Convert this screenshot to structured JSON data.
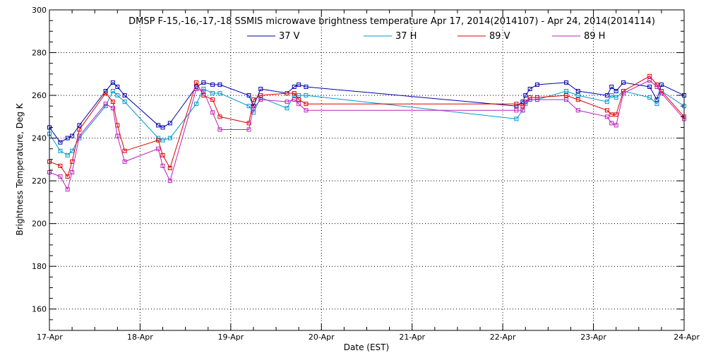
{
  "chart_data": {
    "type": "line",
    "title": "DMSP F-15,-16,-17,-18 SSMIS microwave brightness temperature Apr 17, 2014(2014107) - Apr 24, 2014(2014114)",
    "xlabel": "Date (EST)",
    "ylabel": "Brightness Temperature, Deg K",
    "ylim": [
      150,
      300
    ],
    "xlim": [
      0,
      7
    ],
    "yticks": [
      160,
      180,
      200,
      220,
      240,
      260,
      280,
      300
    ],
    "x_tick_labels": [
      "17-Apr",
      "18-Apr",
      "19-Apr",
      "20-Apr",
      "21-Apr",
      "22-Apr",
      "23-Apr",
      "24-Apr"
    ],
    "grid": true,
    "legend_position": "top-center",
    "series": [
      {
        "name": "37 V",
        "color": "#0000aa",
        "points": [
          [
            0.0,
            245
          ],
          [
            0.12,
            238
          ],
          [
            0.2,
            240
          ],
          [
            0.25,
            241
          ],
          [
            0.33,
            246
          ],
          [
            0.62,
            262
          ],
          [
            0.7,
            266
          ],
          [
            0.75,
            264
          ],
          [
            0.83,
            260
          ],
          [
            1.2,
            246
          ],
          [
            1.25,
            245
          ],
          [
            1.33,
            247
          ],
          [
            1.62,
            264
          ],
          [
            1.7,
            266
          ],
          [
            1.8,
            265
          ],
          [
            1.88,
            265
          ],
          [
            2.2,
            260
          ],
          [
            2.25,
            255
          ],
          [
            2.33,
            263
          ],
          [
            2.62,
            261
          ],
          [
            2.7,
            264
          ],
          [
            2.75,
            265
          ],
          [
            2.83,
            264
          ],
          [
            5.15,
            255
          ],
          [
            5.22,
            257
          ],
          [
            5.25,
            260
          ],
          [
            5.3,
            263
          ],
          [
            5.38,
            265
          ],
          [
            5.7,
            266
          ],
          [
            5.83,
            262
          ],
          [
            6.15,
            260
          ],
          [
            6.2,
            264
          ],
          [
            6.25,
            262
          ],
          [
            6.33,
            266
          ],
          [
            6.62,
            264
          ],
          [
            6.7,
            258
          ],
          [
            6.75,
            265
          ],
          [
            7.0,
            260
          ]
        ]
      },
      {
        "name": "37 H",
        "color": "#0099cc",
        "points": [
          [
            0.0,
            242
          ],
          [
            0.12,
            234
          ],
          [
            0.2,
            232
          ],
          [
            0.25,
            234
          ],
          [
            0.33,
            240
          ],
          [
            0.62,
            255
          ],
          [
            0.7,
            262
          ],
          [
            0.75,
            260
          ],
          [
            0.83,
            257
          ],
          [
            1.2,
            240
          ],
          [
            1.25,
            239
          ],
          [
            1.33,
            240
          ],
          [
            1.62,
            256
          ],
          [
            1.7,
            263
          ],
          [
            1.8,
            261
          ],
          [
            1.88,
            261
          ],
          [
            2.2,
            255
          ],
          [
            2.25,
            252
          ],
          [
            2.33,
            259
          ],
          [
            2.62,
            254
          ],
          [
            2.7,
            260
          ],
          [
            2.75,
            260
          ],
          [
            2.83,
            260
          ],
          [
            5.15,
            249
          ],
          [
            5.22,
            253
          ],
          [
            5.25,
            256
          ],
          [
            5.3,
            258
          ],
          [
            5.38,
            258
          ],
          [
            5.7,
            262
          ],
          [
            5.83,
            260
          ],
          [
            6.15,
            257
          ],
          [
            6.2,
            260
          ],
          [
            6.25,
            259
          ],
          [
            6.33,
            262
          ],
          [
            6.62,
            259
          ],
          [
            6.7,
            256
          ],
          [
            6.75,
            262
          ],
          [
            7.0,
            255
          ]
        ]
      },
      {
        "name": "89 V",
        "color": "#dd0000",
        "points": [
          [
            0.0,
            229
          ],
          [
            0.12,
            227
          ],
          [
            0.2,
            222
          ],
          [
            0.25,
            229
          ],
          [
            0.33,
            244
          ],
          [
            0.62,
            261
          ],
          [
            0.7,
            257
          ],
          [
            0.75,
            246
          ],
          [
            0.83,
            234
          ],
          [
            1.2,
            239
          ],
          [
            1.25,
            232
          ],
          [
            1.33,
            226
          ],
          [
            1.62,
            266
          ],
          [
            1.7,
            260
          ],
          [
            1.8,
            258
          ],
          [
            1.88,
            250
          ],
          [
            2.2,
            247
          ],
          [
            2.25,
            258
          ],
          [
            2.33,
            260
          ],
          [
            2.62,
            261
          ],
          [
            2.7,
            261
          ],
          [
            2.75,
            258
          ],
          [
            2.83,
            256
          ],
          [
            5.15,
            256
          ],
          [
            5.22,
            255
          ],
          [
            5.25,
            257
          ],
          [
            5.3,
            259
          ],
          [
            5.38,
            259
          ],
          [
            5.7,
            260
          ],
          [
            5.83,
            258
          ],
          [
            6.15,
            253
          ],
          [
            6.2,
            251
          ],
          [
            6.25,
            251
          ],
          [
            6.33,
            262
          ],
          [
            6.62,
            269
          ],
          [
            6.7,
            265
          ],
          [
            6.75,
            262
          ],
          [
            7.0,
            250
          ]
        ]
      },
      {
        "name": "89 H",
        "color": "#bb22bb",
        "points": [
          [
            0.0,
            224
          ],
          [
            0.12,
            222
          ],
          [
            0.2,
            216
          ],
          [
            0.25,
            224
          ],
          [
            0.33,
            241
          ],
          [
            0.62,
            256
          ],
          [
            0.7,
            254
          ],
          [
            0.75,
            241
          ],
          [
            0.83,
            229
          ],
          [
            1.2,
            235
          ],
          [
            1.25,
            227
          ],
          [
            1.33,
            220
          ],
          [
            1.62,
            263
          ],
          [
            1.7,
            262
          ],
          [
            1.8,
            252
          ],
          [
            1.88,
            244
          ],
          [
            2.2,
            244
          ],
          [
            2.25,
            254
          ],
          [
            2.33,
            258
          ],
          [
            2.62,
            257
          ],
          [
            2.7,
            258
          ],
          [
            2.75,
            256
          ],
          [
            2.83,
            253
          ],
          [
            5.15,
            253
          ],
          [
            5.22,
            253
          ],
          [
            5.25,
            257
          ],
          [
            5.3,
            258
          ],
          [
            5.38,
            258
          ],
          [
            5.7,
            258
          ],
          [
            5.83,
            253
          ],
          [
            6.15,
            250
          ],
          [
            6.2,
            247
          ],
          [
            6.25,
            246
          ],
          [
            6.33,
            261
          ],
          [
            6.62,
            267
          ],
          [
            6.7,
            264
          ],
          [
            6.75,
            261
          ],
          [
            7.0,
            249
          ]
        ]
      }
    ]
  }
}
